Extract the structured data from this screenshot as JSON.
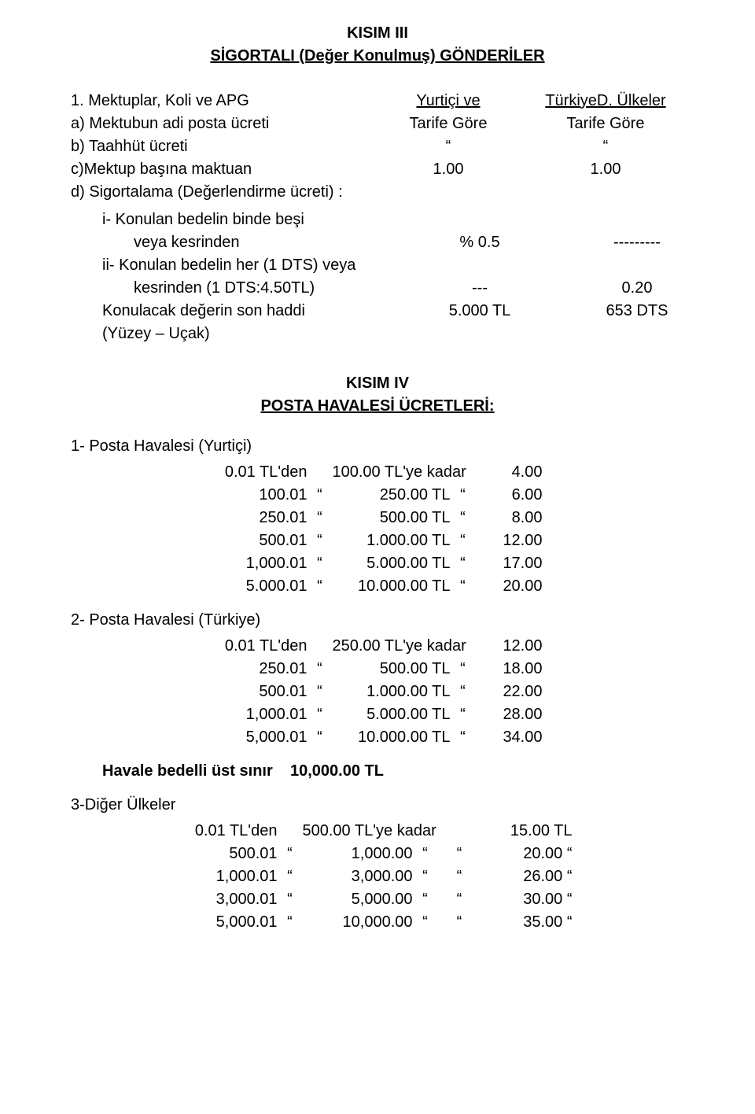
{
  "kisim3": {
    "hdr1": "KISIM III",
    "hdr2": "SİGORTALI (Değer Konulmuş) GÖNDERİLER",
    "r1": {
      "l": "1.  Mektuplar, Koli ve APG",
      "c": "Yurtiçi ve",
      "r": "TürkiyeD. Ülkeler"
    },
    "r2": {
      "l": "a) Mektubun adi posta ücreti",
      "c": "Tarife Göre",
      "r": "Tarife Göre"
    },
    "r3": {
      "l": "b) Taahhüt ücreti",
      "c": "“",
      "r": "“"
    },
    "r4": {
      "l": "c)Mektup başına maktuan",
      "c": "1.00",
      "r": "1.00"
    },
    "r5": {
      "l": "d) Sigortalama (Değerlendirme ücreti) :",
      "c": "",
      "r": ""
    },
    "i1a": {
      "l": "i- Konulan bedelin binde beşi",
      "c": "",
      "r": ""
    },
    "i1b": {
      "l": "veya kesrinden",
      "c": "% 0.5",
      "r": "---------"
    },
    "i2a": {
      "l": "ii- Konulan bedelin her (1 DTS) veya",
      "c": "",
      "r": ""
    },
    "i2b": {
      "l": "kesrinden (1 DTS:4.50TL)",
      "c": "---",
      "r": "0.20"
    },
    "i3": {
      "l": "Konulacak değerin son haddi",
      "c": "5.000 TL",
      "r": "653 DTS"
    },
    "i4": {
      "l": "(Yüzey – Uçak)",
      "c": "",
      "r": ""
    }
  },
  "kisim4": {
    "hdr1": "KISIM IV",
    "hdr2": "POSTA HAVALESİ ÜCRETLERİ:",
    "s1": {
      "title": "1- Posta Havalesi (Yurtiçi)",
      "rows": [
        {
          "from": "0.01 TL'den",
          "q1": "",
          "to": "100.00  TL'ye kadar",
          "q2": "",
          "fee": "4.00"
        },
        {
          "from": "100.01",
          "q1": "“",
          "to": "250.00 TL",
          "q2": "“",
          "fee": "6.00"
        },
        {
          "from": "250.01",
          "q1": "“",
          "to": "500.00 TL",
          "q2": "“",
          "fee": "8.00"
        },
        {
          "from": "500.01",
          "q1": "“",
          "to": "1.000.00 TL",
          "q2": "“",
          "fee": "12.00"
        },
        {
          "from": "1,000.01",
          "q1": "“",
          "to": "5.000.00 TL",
          "q2": "“",
          "fee": "17.00"
        },
        {
          "from": "5.000.01",
          "q1": "“",
          "to": "10.000.00 TL",
          "q2": "“",
          "fee": "20.00"
        }
      ]
    },
    "s2": {
      "title": "2- Posta Havalesi (Türkiye)",
      "rows": [
        {
          "from": "0.01 TL'den",
          "q1": "",
          "to": "250.00  TL'ye kadar",
          "q2": "",
          "fee": "12.00"
        },
        {
          "from": "250.01",
          "q1": "“",
          "to": "500.00 TL",
          "q2": "“",
          "fee": "18.00"
        },
        {
          "from": "500.01",
          "q1": "“",
          "to": "1.000.00 TL",
          "q2": "“",
          "fee": "22.00"
        },
        {
          "from": "1,000.01",
          "q1": "“",
          "to": "5.000.00 TL",
          "q2": "“",
          "fee": "28.00"
        },
        {
          "from": "5,000.01",
          "q1": "“",
          "to": "10.000.00 TL",
          "q2": "“",
          "fee": "34.00"
        }
      ]
    },
    "limit": {
      "label": "Havale bedelli üst sınır",
      "value": "10,000.00 TL"
    },
    "s3": {
      "title": "3-Diğer Ülkeler",
      "rows": [
        {
          "from": "0.01 TL'den",
          "q1": "",
          "to": "500.00 TL'ye kadar",
          "q2": "",
          "q3": "",
          "fee": "15.00 TL"
        },
        {
          "from": "500.01",
          "q1": "“",
          "to": "1,000.00",
          "q2": "“",
          "q3": "“",
          "fee": "20.00   “"
        },
        {
          "from": "1,000.01",
          "q1": "“",
          "to": "3,000.00",
          "q2": "“",
          "q3": "“",
          "fee": "26.00   “"
        },
        {
          "from": "3,000.01",
          "q1": "“",
          "to": "5,000.00",
          "q2": "“",
          "q3": "“",
          "fee": "30.00   “"
        },
        {
          "from": "5,000.01",
          "q1": "“",
          "to": "10,000.00",
          "q2": "“",
          "q3": "“",
          "fee": "35.00   “"
        }
      ]
    }
  }
}
